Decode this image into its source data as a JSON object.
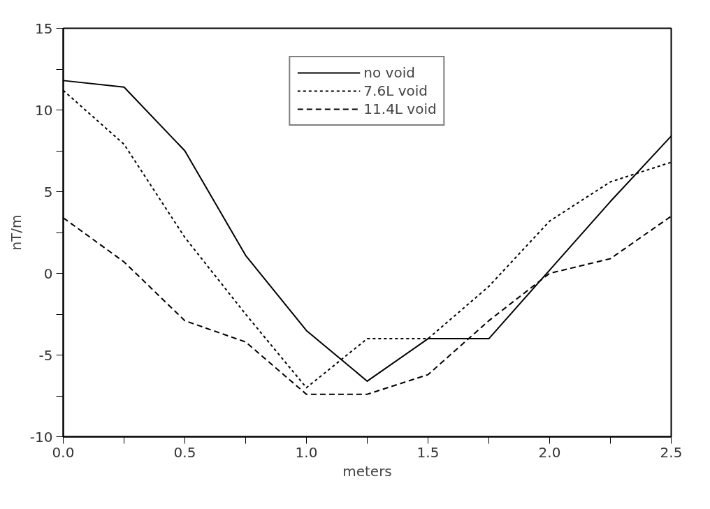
{
  "chart_data": {
    "type": "line",
    "xlabel": "meters",
    "ylabel": "nT/m",
    "x": [
      0,
      0.25,
      0.5,
      0.75,
      1.0,
      1.25,
      1.5,
      1.75,
      2.0,
      2.25,
      2.5
    ],
    "series": [
      {
        "name": "no void",
        "color": "#000000",
        "line_style": "solid",
        "values": [
          11.8,
          11.4,
          7.5,
          1.1,
          -3.5,
          -6.6,
          -4.0,
          -4.0,
          0.2,
          4.4,
          8.4
        ]
      },
      {
        "name": "7.6L void",
        "color": "#000000",
        "line_style": "dotted",
        "values": [
          11.2,
          7.9,
          2.2,
          -2.5,
          -7.0,
          -4.0,
          -4.0,
          -0.8,
          3.2,
          5.6,
          6.8
        ]
      },
      {
        "name": "11.4L void",
        "color": "#000000",
        "line_style": "dashed",
        "values": [
          3.4,
          0.7,
          -2.9,
          -4.2,
          -7.4,
          -7.4,
          -6.2,
          -2.9,
          0.0,
          0.9,
          3.5
        ]
      }
    ],
    "xlim": [
      0,
      2.5
    ],
    "ylim": [
      -10,
      15
    ],
    "xticks": [
      {
        "value": 0,
        "label": "0.0"
      },
      {
        "value": 0.25,
        "label": null
      },
      {
        "value": 0.5,
        "label": "0.5"
      },
      {
        "value": 0.75,
        "label": null
      },
      {
        "value": 1.0,
        "label": "1.0"
      },
      {
        "value": 1.25,
        "label": null
      },
      {
        "value": 1.5,
        "label": "1.5"
      },
      {
        "value": 1.75,
        "label": null
      },
      {
        "value": 2.0,
        "label": "2.0"
      },
      {
        "value": 2.25,
        "label": null
      },
      {
        "value": 2.5,
        "label": "2.5"
      }
    ],
    "yticks": [
      -10,
      {
        "value": -7.5,
        "label": null
      },
      -5,
      {
        "value": -2.5,
        "label": null
      },
      0,
      {
        "value": 2.5,
        "label": null
      },
      5,
      {
        "value": 7.5,
        "label": null
      },
      10,
      {
        "value": 12.5,
        "label": null
      },
      15
    ],
    "grid": false,
    "legend": "top",
    "marker": "none"
  }
}
